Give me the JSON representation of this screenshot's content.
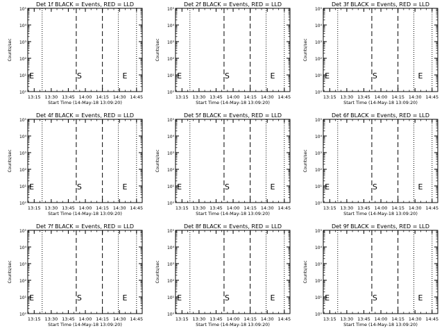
{
  "window": {
    "start_time": "14-May-18 13:09:20"
  },
  "chart_data": [
    {
      "type": "line",
      "title": "Det 1f BLACK = Events, RED = LLD"
    },
    {
      "type": "line",
      "title": "Det 2f BLACK = Events, RED = LLD"
    },
    {
      "type": "line",
      "title": "Det 3f BLACK = Events, RED = LLD"
    },
    {
      "type": "line",
      "title": "Det 4f BLACK = Events, RED = LLD"
    },
    {
      "type": "line",
      "title": "Det 5f BLACK = Events, RED = LLD"
    },
    {
      "type": "line",
      "title": "Det 6f BLACK = Events, RED = LLD"
    },
    {
      "type": "line",
      "title": "Det 7f BLACK = Events, RED = LLD"
    },
    {
      "type": "line",
      "title": "Det 8f BLACK = Events, RED = LLD"
    },
    {
      "type": "line",
      "title": "Det 9f BLACK = Events, RED = LLD"
    }
  ],
  "shared_axes": {
    "ylabel": "Counts/sec",
    "xlabel": "Start Time (14-May-18 13:09:20)",
    "yscale": "log",
    "ylim": [
      1,
      100000
    ],
    "y_ticks": [
      {
        "value": 1,
        "label": "10⁰"
      },
      {
        "value": 10,
        "label": "10¹"
      },
      {
        "value": 100,
        "label": "10²"
      },
      {
        "value": 1000,
        "label": "10³"
      },
      {
        "value": 10000,
        "label": "10⁴"
      },
      {
        "value": 100000,
        "label": "10⁵"
      }
    ],
    "xlim": [
      "13:09:20",
      "14:50:00"
    ],
    "x_ticks": [
      "13:15",
      "13:30",
      "13:45",
      "14:00",
      "14:15",
      "14:30",
      "14:45"
    ],
    "grid": false
  },
  "markers": {
    "dotted_lines": [
      "13:22",
      "14:29",
      "14:45"
    ],
    "dashed_lines": [
      {
        "time": "13:52",
        "label": "S"
      },
      {
        "time": "14:15",
        "label": ""
      }
    ],
    "text_markers": [
      {
        "time": "13:10",
        "label": "E"
      },
      {
        "time": "13:52",
        "label": "S"
      },
      {
        "time": "14:32",
        "label": "E"
      }
    ]
  },
  "colors": {
    "events": "#000000",
    "lld": "#ff0000",
    "axes": "#000000",
    "background": "#ffffff"
  }
}
